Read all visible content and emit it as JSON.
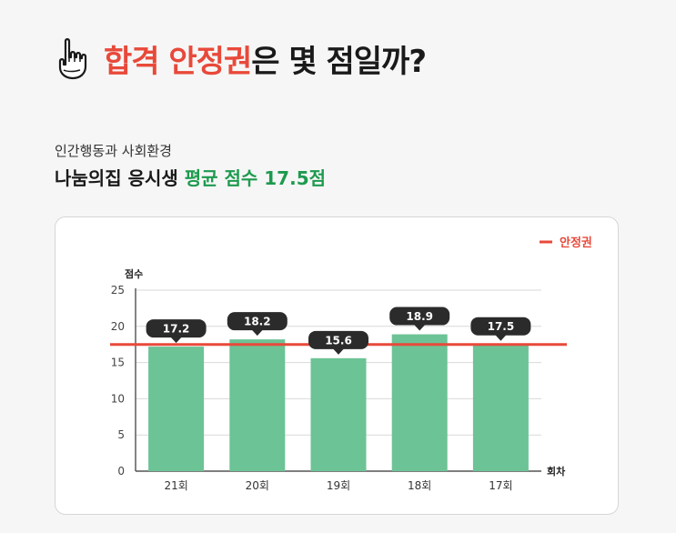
{
  "header": {
    "title_accent": "합격 안정권",
    "title_rest": "은 몇 점일까?",
    "icon": "pointing-hand-icon"
  },
  "subtitle": "인간행동과 사회환경",
  "headline2": {
    "prefix": "나눔의집 응시생 ",
    "highlight": "평균 점수 17.5점"
  },
  "colors": {
    "accent": "#e8493a",
    "bar": "#6cc396",
    "highlight": "#1e9a4e",
    "label_bg": "#2b2b2b"
  },
  "chart_data": {
    "type": "bar",
    "categories": [
      "21회",
      "20회",
      "19회",
      "18회",
      "17회"
    ],
    "values": [
      17.2,
      18.2,
      15.6,
      18.9,
      17.5
    ],
    "data_labels": [
      "17.2",
      "18.2",
      "15.6",
      "18.9",
      "17.5"
    ],
    "xlabel": "회차",
    "ylabel": "점수",
    "ylim": [
      0,
      25
    ],
    "yticks": [
      0,
      5,
      10,
      15,
      20,
      25
    ],
    "grid": true,
    "legend": {
      "label": "안정권",
      "placement": "top-right"
    },
    "reference_line": {
      "name": "안정권",
      "value": 17.5
    }
  }
}
